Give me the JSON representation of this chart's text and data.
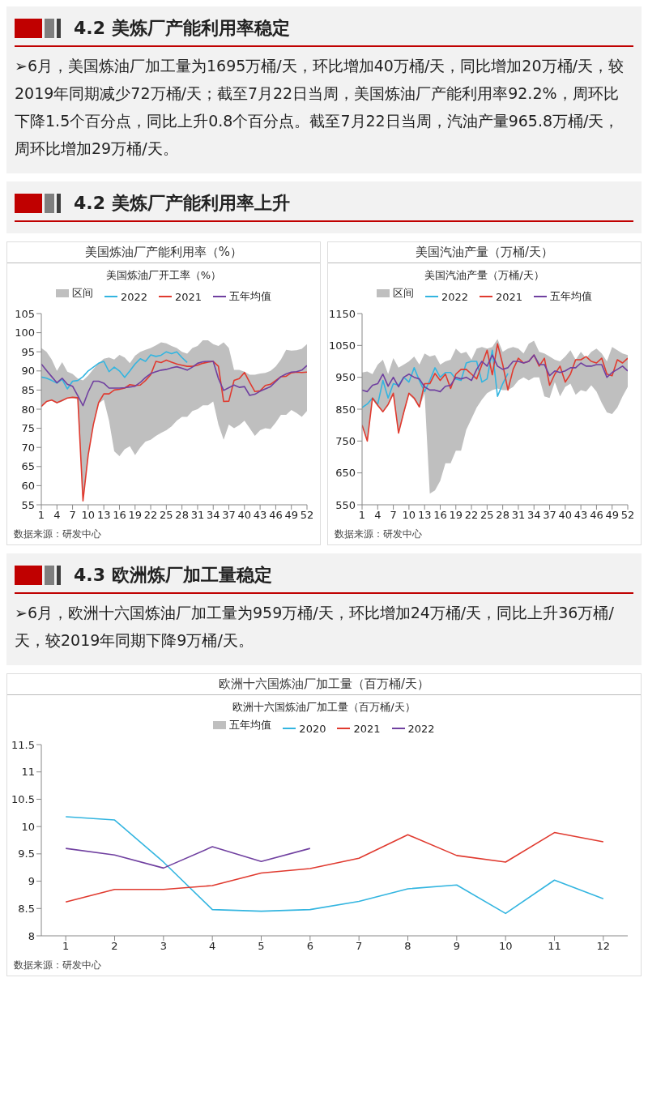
{
  "chart_data": [
    {
      "type": "other",
      "title": "4.2 美炼厂产能利用率稳定",
      "annotations": [
        "➢6月，美国炼油厂加工量为1695万桶/天，环比增加40万桶/天，同比增加20万桶/天，较2019年同期减少72万桶/天；截至7月22日当周，美国炼油厂产能利用率92.2%，周环比下降1.5个百分点，同比上升0.8个百分点。截至7月22日当周，汽油产量965.8万桶/天，周环比增加29万桶/天。"
      ]
    },
    {
      "type": "other",
      "title": "4.2 美炼厂产能利用率上升"
    },
    {
      "type": "line",
      "title": "美国炼油厂产能利用率（%）",
      "subtitle": "美国炼油厂开工率（%）",
      "annotations": [
        "数据来源：研发中心"
      ],
      "legend": "top",
      "marker": "none",
      "line_style": "solid",
      "x": [
        1,
        2,
        3,
        4,
        5,
        6,
        7,
        8,
        9,
        10,
        11,
        12,
        13,
        14,
        15,
        16,
        17,
        18,
        19,
        20,
        21,
        22,
        23,
        24,
        25,
        26,
        27,
        28,
        29,
        30,
        31,
        32,
        33,
        34,
        35,
        36,
        37,
        38,
        39,
        40,
        41,
        42,
        43,
        44,
        45,
        46,
        47,
        48,
        49,
        50,
        51,
        52
      ],
      "xlim": [
        1,
        52
      ],
      "xticks": [
        1,
        4,
        7,
        10,
        13,
        16,
        19,
        22,
        25,
        28,
        31,
        34,
        37,
        40,
        43,
        46,
        49,
        52
      ],
      "ylim": [
        55,
        105
      ],
      "yticks": [
        55,
        60,
        65,
        70,
        75,
        80,
        85,
        90,
        95,
        100,
        105
      ],
      "series": [
        {
          "name": "区间",
          "type": "area",
          "color": "#bfbfbf",
          "values": [
            96,
            95,
            93,
            90,
            92.3,
            89.8,
            89.2,
            88,
            87.5,
            88.8,
            90.5,
            92,
            93.2,
            93.5,
            93,
            94.2,
            93.5,
            92,
            94,
            95,
            95.5,
            96,
            96.7,
            97.5,
            97.2,
            96.5,
            96,
            95,
            94.5,
            96,
            96.5,
            98,
            98,
            97,
            96.5,
            97.5,
            96,
            90.3,
            90.3,
            89.8,
            89,
            89,
            89.3,
            89.5,
            90,
            91.2,
            93,
            95.5,
            95.3,
            95.4,
            95.8,
            97
          ]
        },
        {
          "type": "area",
          "color": "#ffffff",
          "values": [
            80.5,
            82,
            82.3,
            81.5,
            82,
            82.8,
            83,
            82.5,
            56,
            68,
            76,
            81.5,
            82.5,
            77,
            69,
            67.7,
            69.5,
            70.3,
            68,
            70,
            71.5,
            72,
            73,
            73.8,
            74.5,
            75.5,
            77,
            78,
            78,
            79.5,
            80,
            81,
            81,
            82,
            76,
            72,
            76,
            75,
            75.8,
            77,
            75,
            73,
            74.5,
            75,
            74.8,
            76.5,
            78.5,
            78.5,
            79.8,
            79,
            78,
            79.5
          ]
        },
        {
          "name": "2022",
          "type": "line",
          "color": "#33b5e0",
          "values": [
            88.4,
            88.1,
            87.5,
            86.8,
            87.8,
            85.3,
            87.3,
            87.5,
            88.5,
            90,
            91,
            92,
            92.5,
            89.8,
            91,
            90,
            88.3,
            90,
            91.8,
            93.2,
            92.5,
            94.2,
            93.8,
            94.1,
            95,
            94.5,
            95,
            93.5,
            92.2,
            null,
            null,
            null,
            null,
            null,
            null,
            null,
            null,
            null,
            null,
            null,
            null,
            null,
            null,
            null,
            null,
            null,
            null,
            null,
            null,
            null,
            null,
            null
          ]
        },
        {
          "name": "2021",
          "type": "line",
          "color": "#e03a2f",
          "values": [
            80.7,
            82,
            82.4,
            81.7,
            82.3,
            82.9,
            83.1,
            83,
            56,
            68,
            76,
            81.7,
            84,
            84,
            85,
            85.2,
            85.5,
            86.4,
            86.2,
            86.3,
            87.5,
            89,
            92.5,
            92.2,
            92.8,
            92.3,
            91.8,
            91.5,
            91.2,
            91.2,
            91.5,
            92,
            92.3,
            92.5,
            91.2,
            82,
            82.1,
            87.5,
            88,
            89.6,
            87,
            84.6,
            84.8,
            86.2,
            86.5,
            87.5,
            88.5,
            88.6,
            89.5,
            89.7,
            89.6,
            89.7
          ]
        },
        {
          "name": "五年均值",
          "type": "line",
          "color": "#7040a0",
          "values": [
            91.8,
            90.1,
            88.5,
            86.9,
            88.1,
            86.5,
            86,
            83.5,
            80.9,
            84.5,
            87.3,
            87.3,
            86.8,
            85.5,
            85.5,
            85.5,
            85.6,
            85.8,
            86,
            87,
            88.3,
            89.3,
            89.8,
            90.2,
            90.4,
            90.8,
            91.1,
            90.7,
            90.2,
            91,
            92,
            92.4,
            92.5,
            92.5,
            88,
            84.9,
            85.6,
            86.3,
            85.7,
            85.9,
            83.6,
            83.9,
            84.7,
            85.3,
            85.9,
            87.2,
            88.5,
            89.2,
            89.7,
            89.8,
            90.2,
            91.4
          ]
        }
      ]
    },
    {
      "type": "line",
      "title": "美国汽油产量（万桶/天）",
      "subtitle": "美国汽油产量（万桶/天）",
      "annotations": [
        "数据来源：研发中心"
      ],
      "legend": "top",
      "marker": "none",
      "line_style": "solid",
      "x": [
        1,
        2,
        3,
        4,
        5,
        6,
        7,
        8,
        9,
        10,
        11,
        12,
        13,
        14,
        15,
        16,
        17,
        18,
        19,
        20,
        21,
        22,
        23,
        24,
        25,
        26,
        27,
        28,
        29,
        30,
        31,
        32,
        33,
        34,
        35,
        36,
        37,
        38,
        39,
        40,
        41,
        42,
        43,
        44,
        45,
        46,
        47,
        48,
        49,
        50,
        51,
        52
      ],
      "xlim": [
        1,
        52
      ],
      "xticks": [
        1,
        4,
        7,
        10,
        13,
        16,
        19,
        22,
        25,
        28,
        31,
        34,
        37,
        40,
        43,
        46,
        49,
        52
      ],
      "ylim": [
        550,
        1150
      ],
      "yticks": [
        550,
        650,
        750,
        850,
        950,
        1050,
        1150
      ],
      "series": [
        {
          "name": "区间",
          "type": "area",
          "color": "#bfbfbf",
          "values": [
            965,
            968,
            960,
            990,
            1005,
            960,
            1010,
            980,
            990,
            1000,
            1015,
            990,
            1025,
            1015,
            1020,
            990,
            1000,
            1005,
            1040,
            1025,
            1030,
            1005,
            1040,
            1045,
            1040,
            1045,
            1070,
            1030,
            1040,
            1045,
            1040,
            1025,
            1055,
            1065,
            1030,
            1025,
            1015,
            1005,
            1000,
            1015,
            1035,
            1005,
            1030,
            1010,
            1030,
            1040,
            1025,
            1000,
            1045,
            1035,
            1025,
            1020
          ]
        },
        {
          "type": "area",
          "color": "#ffffff",
          "values": [
            800,
            750,
            880,
            860,
            840,
            860,
            895,
            775,
            835,
            895,
            880,
            855,
            900,
            585,
            595,
            625,
            680,
            680,
            720,
            720,
            785,
            820,
            855,
            880,
            900,
            910,
            915,
            910,
            910,
            920,
            940,
            950,
            940,
            950,
            950,
            890,
            885,
            935,
            890,
            920,
            930,
            895,
            910,
            905,
            925,
            905,
            870,
            840,
            835,
            855,
            890,
            920
          ]
        },
        {
          "name": "2022",
          "type": "line",
          "color": "#33b5e0",
          "values": [
            855,
            866,
            885,
            865,
            940,
            885,
            930,
            925,
            950,
            935,
            980,
            940,
            905,
            940,
            980,
            950,
            965,
            965,
            945,
            940,
            995,
            1000,
            1000,
            935,
            945,
            1035,
            890,
            930,
            962,
            null,
            null,
            null,
            null,
            null,
            null,
            null,
            null,
            null,
            null,
            null,
            null,
            null,
            null,
            null,
            null,
            null,
            null,
            null,
            null,
            null,
            null,
            null
          ]
        },
        {
          "name": "2021",
          "type": "line",
          "color": "#e03a2f",
          "values": [
            800,
            750,
            885,
            862,
            842,
            865,
            900,
            775,
            840,
            900,
            885,
            857,
            930,
            930,
            962,
            940,
            960,
            915,
            960,
            975,
            975,
            960,
            945,
            990,
            1035,
            958,
            1055,
            990,
            910,
            975,
            1010,
            995,
            1000,
            1020,
            985,
            1010,
            925,
            960,
            985,
            935,
            960,
            1005,
            1005,
            1015,
            1000,
            995,
            1010,
            960,
            955,
            1005,
            995,
            1010
          ]
        },
        {
          "name": "五年均值",
          "type": "line",
          "color": "#7040a0",
          "values": [
            910,
            905,
            925,
            930,
            960,
            922,
            950,
            920,
            950,
            960,
            950,
            945,
            920,
            910,
            910,
            905,
            922,
            925,
            950,
            945,
            950,
            940,
            975,
            1000,
            985,
            1020,
            985,
            975,
            980,
            1000,
            1000,
            995,
            1000,
            1020,
            990,
            990,
            955,
            970,
            965,
            970,
            980,
            980,
            995,
            985,
            985,
            990,
            990,
            950,
            965,
            975,
            985,
            970
          ]
        }
      ]
    },
    {
      "type": "other",
      "title": "4.3 欧洲炼厂加工量稳定",
      "annotations": [
        "➢6月，欧洲十六国炼油厂加工量为959万桶/天，环比增加24万桶/天，同比上升36万桶/天，较2019年同期下降9万桶/天。"
      ]
    },
    {
      "type": "line",
      "title": "欧洲十六国炼油厂加工量（百万桶/天）",
      "subtitle": "欧洲十六国炼油厂加工量（百万桶/天）",
      "annotations": [
        "数据来源：研发中心"
      ],
      "legend": "top",
      "marker": "none",
      "line_style": "solid",
      "x": [
        1,
        2,
        3,
        4,
        5,
        6,
        7,
        8,
        9,
        10,
        11,
        12
      ],
      "xlim": [
        0.5,
        12.5
      ],
      "xticks": [
        1,
        2,
        3,
        4,
        5,
        6,
        7,
        8,
        9,
        10,
        11,
        12
      ],
      "ylim": [
        8,
        11.5
      ],
      "yticks": [
        8,
        8.5,
        9,
        9.5,
        10,
        10.5,
        11,
        11.5
      ],
      "series": [
        {
          "name": "五年均值",
          "type": "area",
          "color": "#bfbfbf",
          "values": [
            null,
            null,
            null,
            null,
            null,
            null,
            null,
            null,
            null,
            null,
            null,
            null
          ]
        },
        {
          "name": "2020",
          "type": "line",
          "color": "#33b5e0",
          "values": [
            10.18,
            10.12,
            9.35,
            8.48,
            8.45,
            8.48,
            8.63,
            8.86,
            8.93,
            8.41,
            9.02,
            8.68
          ]
        },
        {
          "name": "2021",
          "type": "line",
          "color": "#e03a2f",
          "values": [
            8.62,
            8.85,
            8.85,
            8.92,
            9.15,
            9.23,
            9.42,
            9.85,
            9.47,
            9.35,
            9.89,
            9.72
          ]
        },
        {
          "name": "2022",
          "type": "line",
          "color": "#7040a0",
          "values": [
            9.6,
            9.48,
            9.24,
            9.63,
            9.36,
            9.6,
            null,
            null,
            null,
            null,
            null,
            null
          ]
        }
      ]
    }
  ]
}
